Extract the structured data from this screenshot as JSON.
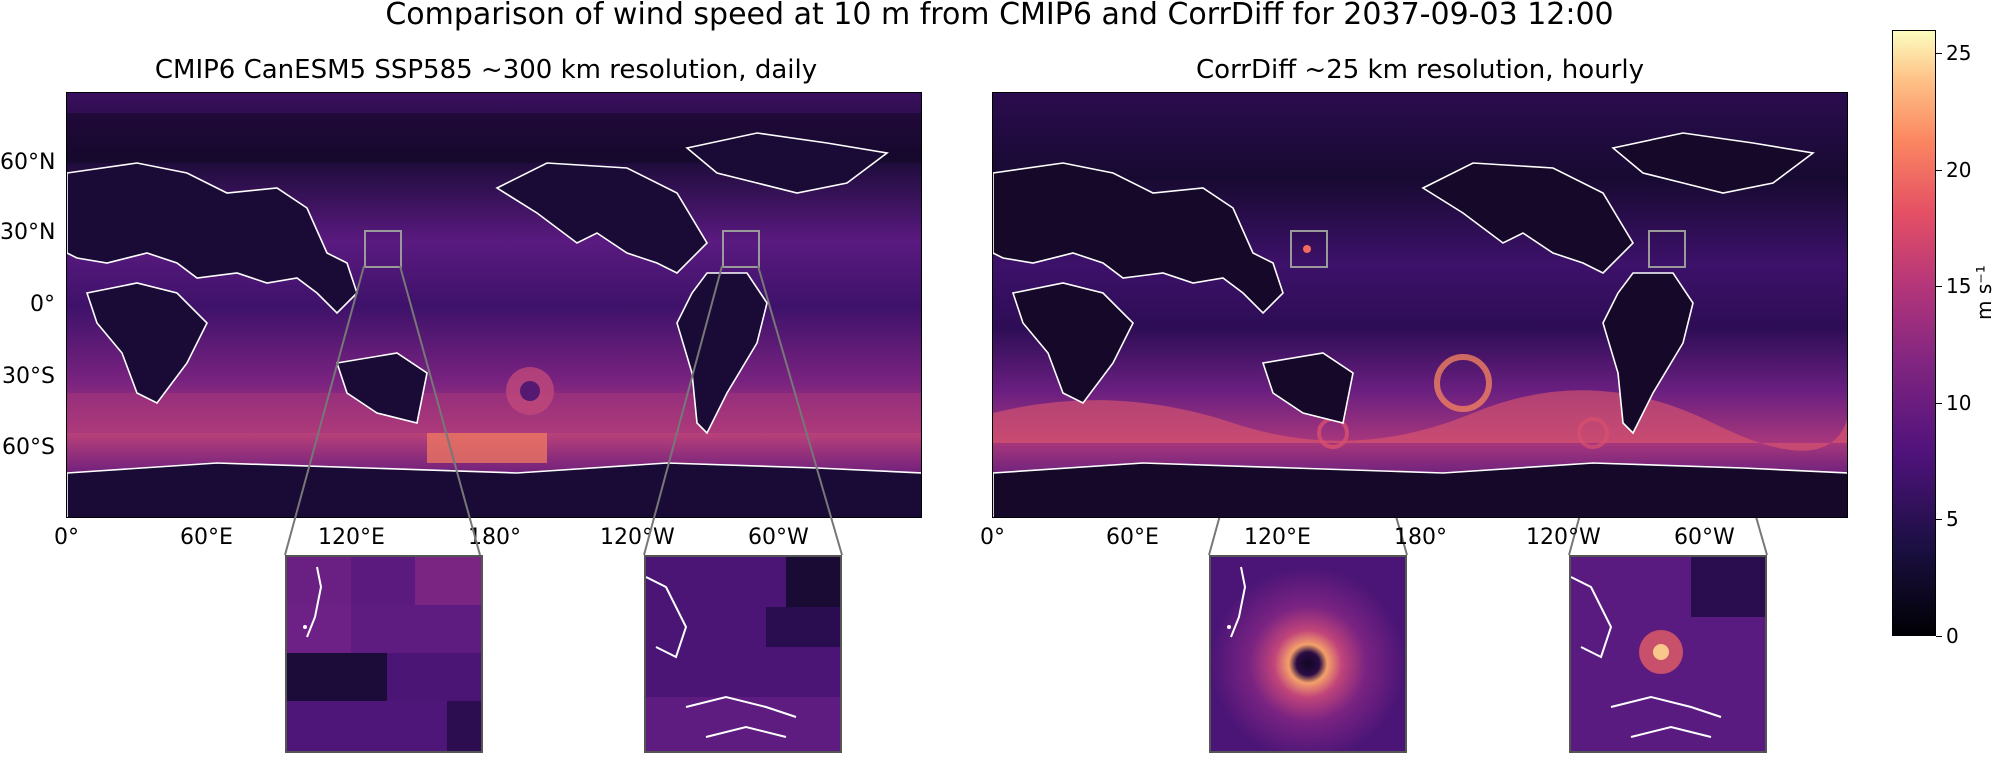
{
  "figure": {
    "title": "Comparison of wind speed at 10 m from CMIP6 and CorrDiff for 2037-09-03 12:00"
  },
  "panels": [
    {
      "subtitle": "CMIP6 CanESM5 SSP585 ~300 km resolution, daily",
      "y_ticks": [
        "60°N",
        "30°N",
        "0°",
        "30°S",
        "60°S"
      ],
      "x_ticks": [
        "0°",
        "60°E",
        "120°E",
        "180°",
        "120°W",
        "60°W"
      ]
    },
    {
      "subtitle": "CorrDiff ~25 km resolution, hourly",
      "x_ticks": [
        "0°",
        "60°E",
        "120°E",
        "180°",
        "120°W",
        "60°W"
      ]
    }
  ],
  "colorbar": {
    "unit": "m s⁻¹",
    "ticks": [
      "0",
      "5",
      "10",
      "15",
      "20",
      "25"
    ],
    "range": [
      0,
      26
    ],
    "colormap": "magma"
  },
  "colors": {
    "coastline": "#ffffff",
    "inset_border": "#555555",
    "low": "#000004",
    "mid": "#812581",
    "high": "#fcfdbf"
  }
}
